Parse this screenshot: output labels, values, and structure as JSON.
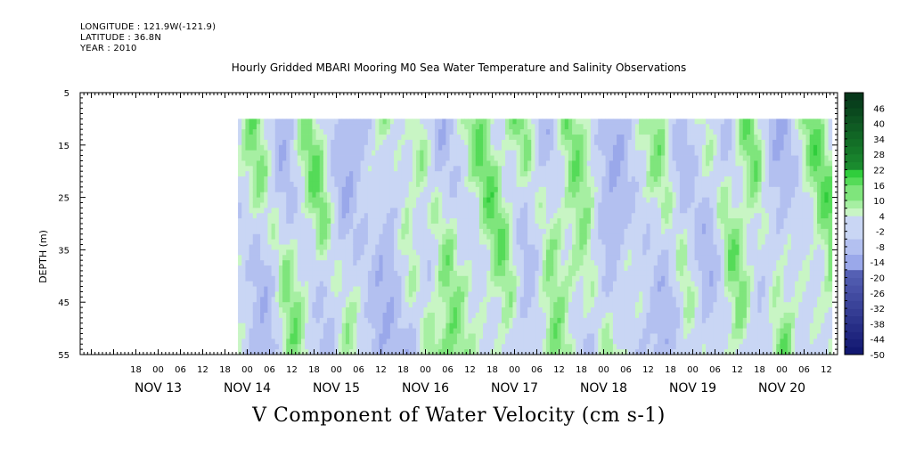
{
  "header": {
    "longitude": "LONGITUDE : 121.9W(-121.9)",
    "latitude": "LATITUDE : 36.8N",
    "year": "YEAR : 2010"
  },
  "chart_data": {
    "type": "heatmap",
    "title": "Hourly Gridded MBARI Mooring M0 Sea Water Temperature and Salinity Observations",
    "xlabel": "V Component of Water Velocity (cm s-1)",
    "ylabel": "DEPTH (m)",
    "ylim": [
      55,
      5
    ],
    "y_ticks": [
      "5",
      "15",
      "25",
      "35",
      "45",
      "55"
    ],
    "x_hour_ticks": [
      "18",
      "00",
      "06",
      "12",
      "18",
      "00",
      "06",
      "12",
      "18",
      "00",
      "06",
      "12",
      "18",
      "00",
      "06",
      "12",
      "18",
      "00",
      "06",
      "12",
      "18",
      "00",
      "06",
      "12",
      "18",
      "00",
      "06",
      "12",
      "18",
      "00",
      "06",
      "12"
    ],
    "x_date_labels": [
      "NOV 13",
      "NOV 14",
      "NOV 15",
      "NOV 16",
      "NOV 17",
      "NOV 18",
      "NOV 19",
      "NOV 20"
    ],
    "data_depth_range": [
      10,
      55
    ],
    "data_time_start": "NOV 13 22:00",
    "data_time_end": "NOV 20 13:00",
    "colorbar": {
      "labels": [
        "46",
        "40",
        "34",
        "28",
        "22",
        "16",
        "10",
        "4",
        "-2",
        "-8",
        "-14",
        "-20",
        "-26",
        "-32",
        "-38",
        "-44",
        "-50"
      ],
      "range": [
        -50,
        52
      ]
    },
    "pattern_note_values": {
      "dominant_range": [
        -8,
        16
      ],
      "positive_bands_hours": [
        8,
        26,
        40,
        62,
        70,
        86,
        98,
        110,
        134,
        148,
        158,
        176
      ],
      "negative_bands_hours": [
        2,
        16,
        34,
        52,
        66,
        76,
        104,
        124,
        142,
        152,
        168
      ]
    }
  }
}
